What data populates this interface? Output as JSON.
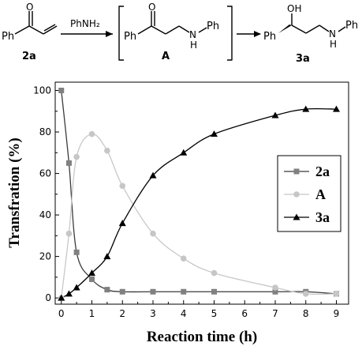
{
  "scheme": {
    "reactant": {
      "label": "2a",
      "substituent": "Ph"
    },
    "reagent": "PhNH₂",
    "intermediate": {
      "label": "A",
      "left_substituent": "Ph",
      "amine_h": "H",
      "amine_substituent": "Ph"
    },
    "product": {
      "label": "3a",
      "left_substituent": "Ph",
      "hydroxyl": "OH",
      "amine_h": "H",
      "amine_substituent": "Ph"
    }
  },
  "chart_data": {
    "type": "line",
    "xlabel": "Reaction time (h)",
    "ylabel": "Transfration (%)",
    "xlim": [
      -0.2,
      9.4
    ],
    "ylim": [
      -3,
      104
    ],
    "x_ticks": [
      0,
      1,
      2,
      3,
      4,
      5,
      6,
      7,
      8,
      9
    ],
    "y_ticks": [
      0,
      20,
      40,
      60,
      80,
      100
    ],
    "grid": false,
    "legend_position": "right",
    "series": [
      {
        "name": "2a",
        "marker": "square",
        "marker_color": "#808080",
        "line_color": "#3a3a3a",
        "x": [
          0,
          0.25,
          0.5,
          1,
          1.5,
          2,
          3,
          4,
          5,
          7,
          8,
          9
        ],
        "y": [
          100,
          65,
          22,
          9,
          4,
          3,
          3,
          3,
          3,
          3,
          3,
          2
        ]
      },
      {
        "name": "A",
        "marker": "circle",
        "marker_color": "#c6c6c6",
        "line_color": "#c8c8c8",
        "x": [
          0,
          0.25,
          0.5,
          1,
          1.5,
          2,
          3,
          4,
          5,
          7,
          8,
          9
        ],
        "y": [
          0,
          31,
          68,
          79,
          71,
          54,
          31,
          19,
          12,
          5,
          2,
          2
        ]
      },
      {
        "name": "3a",
        "marker": "triangle",
        "marker_color": "#000000",
        "line_color": "#000000",
        "x": [
          0,
          0.25,
          0.5,
          1,
          1.5,
          2,
          3,
          4,
          5,
          7,
          8,
          9
        ],
        "y": [
          0,
          2,
          5,
          12,
          20,
          36,
          59,
          70,
          79,
          88,
          91,
          91
        ]
      }
    ]
  }
}
